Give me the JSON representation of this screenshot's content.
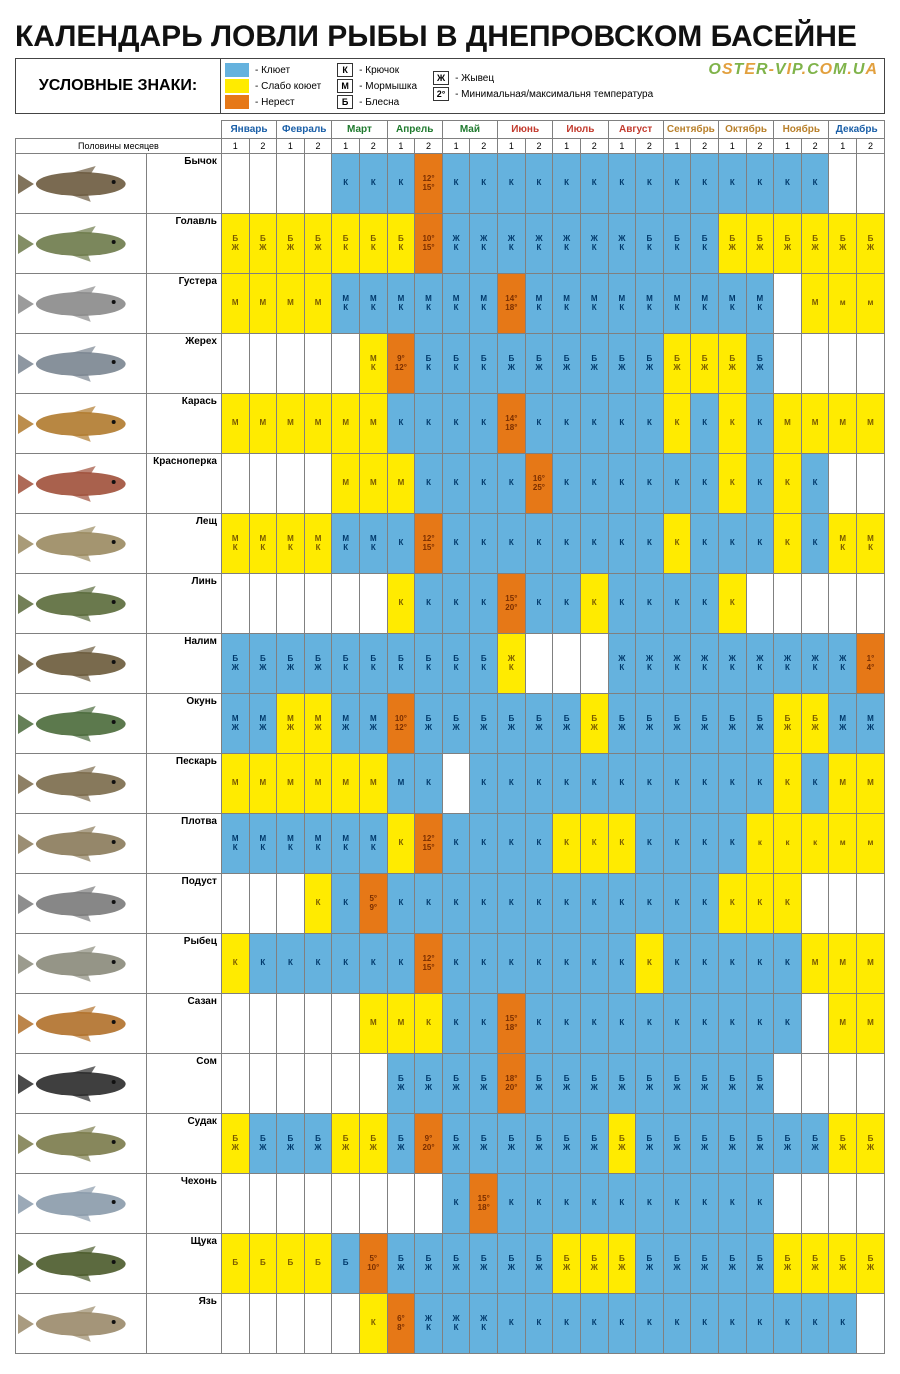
{
  "title": "КАЛЕНДАРЬ ЛОВЛИ РЫБЫ В ДНЕПРОВСКОМ БАСЕЙНЕ",
  "brand": "OSTER-VIP.COM.UA",
  "legend_title": "УСЛОВНЫЕ\nЗНАКИ:",
  "halfmonths_label": "Половины месяцев",
  "colors": {
    "bite": "#65b2de",
    "weak": "#ffeb00",
    "spawn": "#e67817",
    "empty": "#ffffff",
    "text_bite": "#00396b",
    "text_weak": "#7a5b00",
    "text_spawn": "#7a2e00",
    "grid": "#808080"
  },
  "legend_colors": [
    {
      "key": "bite",
      "label": "- Клюет"
    },
    {
      "key": "weak",
      "label": "- Слабо коюет"
    },
    {
      "key": "spawn",
      "label": "- Нерест"
    }
  ],
  "legend_tactics": [
    {
      "code": "К",
      "label": "- Крючок"
    },
    {
      "code": "М",
      "label": "- Мормышка"
    },
    {
      "code": "Б",
      "label": "- Блесна"
    }
  ],
  "legend_extra": [
    {
      "code": "Ж",
      "label": "- Жывец"
    },
    {
      "code": "2°",
      "label": "- Минимальная/максимальня температура"
    }
  ],
  "months": [
    {
      "name": "Январь",
      "color": "#1a5fa8"
    },
    {
      "name": "Февраль",
      "color": "#1a5fa8"
    },
    {
      "name": "Март",
      "color": "#1f7a2e"
    },
    {
      "name": "Апрель",
      "color": "#1f7a2e"
    },
    {
      "name": "Май",
      "color": "#1f7a2e"
    },
    {
      "name": "Июнь",
      "color": "#c33b2e"
    },
    {
      "name": "Июль",
      "color": "#c33b2e"
    },
    {
      "name": "Август",
      "color": "#c33b2e"
    },
    {
      "name": "Сентябрь",
      "color": "#b9802b"
    },
    {
      "name": "Октябрь",
      "color": "#b9802b"
    },
    {
      "name": "Ноябрь",
      "color": "#b9802b"
    },
    {
      "name": "Декабрь",
      "color": "#1a5fa8"
    }
  ],
  "halves": [
    "1",
    "2"
  ],
  "fish_colors": {
    "Бычок": "#6b5a3e",
    "Голавль": "#6d7a4a",
    "Густера": "#8a8a8a",
    "Жерех": "#7a8590",
    "Карась": "#b07a2e",
    "Красноперка": "#a0503a",
    "Лещ": "#9a8a60",
    "Линь": "#5a6a3a",
    "Налим": "#6a5a3a",
    "Окунь": "#4a6a3a",
    "Пескарь": "#7a6a4a",
    "Плотва": "#8a7a5a",
    "Подуст": "#7a7a7a",
    "Рыбец": "#8a8a7a",
    "Сазан": "#b0702a",
    "Сом": "#2a2a2a",
    "Судак": "#7a7a4a",
    "Чехонь": "#8a9aaa",
    "Щука": "#4a5a2a",
    "Язь": "#9a8a6a"
  },
  "fish": [
    {
      "name": "Бычок",
      "cells": [
        "",
        "",
        "",
        "",
        "b:К",
        "b:К",
        "b:К",
        "s:12°\n15°",
        "b:К",
        "b:К",
        "b:К",
        "b:К",
        "b:К",
        "b:К",
        "b:К",
        "b:К",
        "b:К",
        "b:К",
        "b:К",
        "b:К",
        "b:К",
        "b:К",
        "",
        ""
      ]
    },
    {
      "name": "Голавль",
      "cells": [
        "w:Б\nЖ",
        "w:Б\nЖ",
        "w:Б\nЖ",
        "w:Б\nЖ",
        "w:Б\nК",
        "w:Б\nК",
        "w:Б\nК",
        "s:10°\n15°",
        "b:Ж\nК",
        "b:Ж\nК",
        "b:Ж\nК",
        "b:Ж\nК",
        "b:Ж\nК",
        "b:Ж\nК",
        "b:Ж\nК",
        "b:Б\nК",
        "b:Б\nК",
        "b:Б\nК",
        "w:Б\nЖ",
        "w:Б\nЖ",
        "w:Б\nЖ",
        "w:Б\nЖ",
        "w:Б\nЖ",
        "w:Б\nЖ"
      ]
    },
    {
      "name": "Густера",
      "cells": [
        "w:М",
        "w:М",
        "w:М",
        "w:М",
        "b:М\nК",
        "b:М\nК",
        "b:М\nК",
        "b:М\nК",
        "b:М\nК",
        "b:М\nК",
        "s:14°\n18°",
        "b:М\nК",
        "b:М\nК",
        "b:М\nК",
        "b:М\nК",
        "b:М\nК",
        "b:М\nК",
        "b:М\nК",
        "b:М\nК",
        "b:М\nК",
        "",
        "w:М",
        "w:м",
        "w:м"
      ]
    },
    {
      "name": "Жерех",
      "cells": [
        "",
        "",
        "",
        "",
        "",
        "w:М\nК",
        "s:9°\n12°",
        "b:Б\nК",
        "b:Б\nК",
        "b:Б\nК",
        "b:Б\nЖ",
        "b:Б\nЖ",
        "b:Б\nЖ",
        "b:Б\nЖ",
        "b:Б\nЖ",
        "b:Б\nЖ",
        "w:Б\nЖ",
        "w:Б\nЖ",
        "w:Б\nЖ",
        "b:Б\nЖ",
        "",
        "",
        "",
        ""
      ]
    },
    {
      "name": "Карась",
      "cells": [
        "w:М",
        "w:М",
        "w:М",
        "w:М",
        "w:М",
        "w:М",
        "b:К",
        "b:К",
        "b:К",
        "b:К",
        "s:14°\n18°",
        "b:К",
        "b:К",
        "b:К",
        "b:К",
        "b:К",
        "w:К",
        "b:К",
        "w:К",
        "b:К",
        "w:М",
        "w:М",
        "w:М",
        "w:М"
      ]
    },
    {
      "name": "Красноперка",
      "cells": [
        "",
        "",
        "",
        "",
        "w:М",
        "w:М",
        "w:М",
        "b:К",
        "b:К",
        "b:К",
        "b:К",
        "s:16°\n25°",
        "b:К",
        "b:К",
        "b:К",
        "b:К",
        "b:К",
        "b:К",
        "w:К",
        "b:К",
        "w:К",
        "b:К",
        "",
        ""
      ]
    },
    {
      "name": "Лещ",
      "cells": [
        "w:М\nК",
        "w:М\nК",
        "w:М\nК",
        "w:М\nК",
        "b:М\nК",
        "b:М\nК",
        "b:К",
        "s:12°\n15°",
        "b:К",
        "b:К",
        "b:К",
        "b:К",
        "b:К",
        "b:К",
        "b:К",
        "b:К",
        "w:К",
        "b:К",
        "b:К",
        "b:К",
        "w:К",
        "b:К",
        "w:М\nК",
        "w:М\nК"
      ]
    },
    {
      "name": "Линь",
      "cells": [
        "",
        "",
        "",
        "",
        "",
        "",
        "w:К",
        "b:К",
        "b:К",
        "b:К",
        "s:15°\n20°",
        "b:К",
        "b:К",
        "w:К",
        "b:К",
        "b:К",
        "b:К",
        "b:К",
        "w:К",
        "",
        "",
        "",
        "",
        ""
      ]
    },
    {
      "name": "Налим",
      "cells": [
        "b:Б\nЖ",
        "b:Б\nЖ",
        "b:Б\nЖ",
        "b:Б\nЖ",
        "b:Б\nК",
        "b:Б\nК",
        "b:Б\nК",
        "b:Б\nК",
        "b:Б\nК",
        "b:Б\nК",
        "w:Ж\nК",
        "",
        "",
        "",
        "b:Ж\nК",
        "b:Ж\nК",
        "b:Ж\nК",
        "b:Ж\nК",
        "b:Ж\nК",
        "b:Ж\nК",
        "b:Ж\nК",
        "b:Ж\nК",
        "b:Ж\nК",
        "s:1°\n4°"
      ]
    },
    {
      "name": "Окунь",
      "cells": [
        "b:М\nЖ",
        "b:М\nЖ",
        "w:М\nЖ",
        "w:М\nЖ",
        "b:М\nЖ",
        "b:М\nЖ",
        "s:10°\n12°",
        "b:Б\nЖ",
        "b:Б\nЖ",
        "b:Б\nЖ",
        "b:Б\nЖ",
        "b:Б\nЖ",
        "b:Б\nЖ",
        "w:Б\nЖ",
        "b:Б\nЖ",
        "b:Б\nЖ",
        "b:Б\nЖ",
        "b:Б\nЖ",
        "b:Б\nЖ",
        "b:Б\nЖ",
        "w:Б\nЖ",
        "w:Б\nЖ",
        "b:М\nЖ",
        "b:М\nЖ"
      ]
    },
    {
      "name": "Пескарь",
      "cells": [
        "w:М",
        "w:М",
        "w:М",
        "w:М",
        "w:М",
        "w:М",
        "b:М",
        "b:К",
        "",
        "b:К",
        "b:К",
        "b:К",
        "b:К",
        "b:К",
        "b:К",
        "b:К",
        "b:К",
        "b:К",
        "b:К",
        "b:К",
        "w:К",
        "b:К",
        "w:М",
        "w:М"
      ]
    },
    {
      "name": "Плотва",
      "cells": [
        "b:М\nК",
        "b:М\nК",
        "b:М\nК",
        "b:М\nК",
        "b:М\nК",
        "b:М\nК",
        "w:К",
        "s:12°\n15°",
        "b:К",
        "b:К",
        "b:К",
        "b:К",
        "w:К",
        "w:К",
        "w:К",
        "b:К",
        "b:К",
        "b:К",
        "b:К",
        "w:к",
        "w:к",
        "w:к",
        "w:м",
        "w:м"
      ]
    },
    {
      "name": "Подуст",
      "cells": [
        "",
        "",
        "",
        "w:К",
        "b:К",
        "s:5°\n9°",
        "b:К",
        "b:К",
        "b:К",
        "b:К",
        "b:К",
        "b:К",
        "b:К",
        "b:К",
        "b:К",
        "b:К",
        "b:К",
        "b:К",
        "w:К",
        "w:К",
        "w:К",
        "",
        "",
        ""
      ]
    },
    {
      "name": "Рыбец",
      "cells": [
        "w:К",
        "b:К",
        "b:К",
        "b:К",
        "b:К",
        "b:К",
        "b:К",
        "s:12°\n15°",
        "b:К",
        "b:К",
        "b:К",
        "b:К",
        "b:К",
        "b:К",
        "b:К",
        "w:К",
        "b:К",
        "b:К",
        "b:К",
        "b:К",
        "b:К",
        "w:М",
        "w:М",
        "w:М"
      ]
    },
    {
      "name": "Сазан",
      "cells": [
        "",
        "",
        "",
        "",
        "",
        "w:М",
        "w:М",
        "w:К",
        "b:К",
        "b:К",
        "s:15°\n18°",
        "b:К",
        "b:К",
        "b:К",
        "b:К",
        "b:К",
        "b:К",
        "b:К",
        "b:К",
        "b:К",
        "b:К",
        "",
        "w:М",
        "w:М"
      ]
    },
    {
      "name": "Сом",
      "cells": [
        "",
        "",
        "",
        "",
        "",
        "",
        "b:Б\nЖ",
        "b:Б\nЖ",
        "b:Б\nЖ",
        "b:Б\nЖ",
        "s:18°\n20°",
        "b:Б\nЖ",
        "b:Б\nЖ",
        "b:Б\nЖ",
        "b:Б\nЖ",
        "b:Б\nЖ",
        "b:Б\nЖ",
        "b:Б\nЖ",
        "b:Б\nЖ",
        "b:Б\nЖ",
        "",
        "",
        "",
        ""
      ]
    },
    {
      "name": "Судак",
      "cells": [
        "w:Б\nЖ",
        "b:Б\nЖ",
        "b:Б\nЖ",
        "b:Б\nЖ",
        "w:Б\nЖ",
        "w:Б\nЖ",
        "b:Б\nЖ",
        "s:9°\n20°",
        "b:Б\nЖ",
        "b:Б\nЖ",
        "b:Б\nЖ",
        "b:Б\nЖ",
        "b:Б\nЖ",
        "b:Б\nЖ",
        "w:Б\nЖ",
        "b:Б\nЖ",
        "b:Б\nЖ",
        "b:Б\nЖ",
        "b:Б\nЖ",
        "b:Б\nЖ",
        "b:Б\nЖ",
        "b:Б\nЖ",
        "w:Б\nЖ",
        "w:Б\nЖ"
      ]
    },
    {
      "name": "Чехонь",
      "cells": [
        "",
        "",
        "",
        "",
        "",
        "",
        "",
        "",
        "b:К",
        "s:15°\n18°",
        "b:К",
        "b:К",
        "b:К",
        "b:К",
        "b:К",
        "b:К",
        "b:К",
        "b:К",
        "b:К",
        "b:К",
        "",
        "",
        "",
        ""
      ]
    },
    {
      "name": "Щука",
      "cells": [
        "w:Б",
        "w:Б",
        "w:Б",
        "w:Б",
        "b:Б",
        "s:5°\n10°",
        "b:Б\nЖ",
        "b:Б\nЖ",
        "b:Б\nЖ",
        "b:Б\nЖ",
        "b:Б\nЖ",
        "b:Б\nЖ",
        "w:Б\nЖ",
        "w:Б\nЖ",
        "w:Б\nЖ",
        "b:Б\nЖ",
        "b:Б\nЖ",
        "b:Б\nЖ",
        "b:Б\nЖ",
        "b:Б\nЖ",
        "w:Б\nЖ",
        "w:Б\nЖ",
        "w:Б\nЖ",
        "w:Б\nЖ"
      ]
    },
    {
      "name": "Язь",
      "cells": [
        "",
        "",
        "",
        "",
        "",
        "w:К",
        "s:6°\n8°",
        "b:Ж\nК",
        "b:Ж\nК",
        "b:Ж\nК",
        "b:К",
        "b:К",
        "b:К",
        "b:К",
        "b:К",
        "b:К",
        "b:К",
        "b:К",
        "b:К",
        "b:К",
        "b:К",
        "b:К",
        "b:К",
        ""
      ]
    }
  ]
}
